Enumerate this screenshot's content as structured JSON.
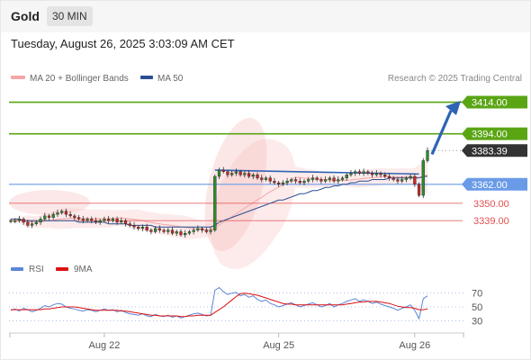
{
  "header": {
    "symbol": "Gold",
    "timeframe": "30 MIN"
  },
  "timestamp": "Tuesday, August 26, 2025 3:03:09 AM CET",
  "legend": {
    "bb_label": "MA 20 + Bollinger Bands",
    "ma50_label": "MA 50",
    "rsi_label": "RSI",
    "rsi_ma_label": "9MA",
    "copyright": "Research © 2025 Trading Central"
  },
  "colors": {
    "resistance": "#5aa514",
    "support": "#6a9be8",
    "pivot_red": "#e05050",
    "current": "#333333",
    "arrow": "#2e63b5",
    "ma50": "#2a4f90",
    "bollinger_band": "#f4a6a6",
    "rsi_line": "#5b86d6",
    "rsi_ma_line": "#dd1111"
  },
  "chart_data": {
    "type": "candlestick",
    "ylim": [
      3318,
      3424
    ],
    "x_ticks": [
      "Aug 22",
      "Aug 25",
      "Aug 26"
    ],
    "levels": [
      {
        "value": 3414.0,
        "label": "3414.00",
        "kind": "resistance"
      },
      {
        "value": 3394.0,
        "label": "3394.00",
        "kind": "resistance"
      },
      {
        "value": 3383.39,
        "label": "3383.39",
        "kind": "current"
      },
      {
        "value": 3362.0,
        "label": "3362.00",
        "kind": "support"
      },
      {
        "value": 3350.0,
        "label": "3350.00",
        "kind": "red"
      },
      {
        "value": 3339.0,
        "label": "3339.00",
        "kind": "red"
      }
    ],
    "close_series": [
      3339,
      3339,
      3340,
      3338,
      3336,
      3337,
      3338,
      3340,
      3342,
      3341,
      3343,
      3344,
      3345,
      3343,
      3342,
      3341,
      3340,
      3339,
      3340,
      3339,
      3338,
      3339,
      3340,
      3339,
      3340,
      3338,
      3339,
      3337,
      3336,
      3335,
      3334,
      3335,
      3333,
      3332,
      3334,
      3333,
      3332,
      3333,
      3331,
      3332,
      3330,
      3331,
      3332,
      3333,
      3334,
      3333,
      3332,
      3333,
      3367,
      3371,
      3370,
      3368,
      3369,
      3370,
      3368,
      3369,
      3367,
      3368,
      3366,
      3365,
      3366,
      3364,
      3363,
      3362,
      3363,
      3364,
      3365,
      3364,
      3363,
      3364,
      3365,
      3366,
      3365,
      3364,
      3365,
      3366,
      3364,
      3365,
      3366,
      3368,
      3369,
      3370,
      3369,
      3370,
      3369,
      3368,
      3369,
      3368,
      3367,
      3366,
      3365,
      3364,
      3365,
      3366,
      3367,
      3362,
      3355,
      3377,
      3383.39
    ],
    "ma50_series": [
      3340,
      3340,
      3340,
      3339,
      3339,
      3339,
      3339,
      3339,
      3339,
      3339,
      3339,
      3339,
      3339,
      3339,
      3339,
      3339,
      3338,
      3338,
      3338,
      3338,
      3338,
      3338,
      3338,
      3337,
      3337,
      3337,
      3337,
      3337,
      3336,
      3336,
      3336,
      3336,
      3336,
      3336,
      3335,
      3335,
      3335,
      3335,
      3335,
      3335,
      3335,
      3335,
      3335,
      3335,
      3335,
      3335,
      3335,
      3335,
      3336,
      3338,
      3339,
      3340,
      3341,
      3342,
      3343,
      3344,
      3345,
      3346,
      3347,
      3348,
      3349,
      3350,
      3351,
      3352,
      3352,
      3353,
      3354,
      3355,
      3356,
      3356,
      3357,
      3358,
      3358,
      3359,
      3360,
      3360,
      3361,
      3361,
      3362,
      3362,
      3363,
      3363,
      3364,
      3364,
      3364,
      3365,
      3365,
      3365,
      3365,
      3366,
      3366,
      3366,
      3366,
      3366,
      3366,
      3366,
      3366,
      3367,
      3367
    ],
    "rsi": {
      "ylim": [
        20,
        80
      ],
      "ticks": [
        70,
        50,
        30
      ],
      "values": [
        45,
        47,
        44,
        48,
        46,
        43,
        45,
        48,
        52,
        50,
        53,
        55,
        54,
        50,
        48,
        47,
        45,
        44,
        46,
        45,
        43,
        45,
        47,
        45,
        46,
        43,
        45,
        42,
        40,
        39,
        38,
        40,
        37,
        36,
        39,
        37,
        36,
        38,
        35,
        37,
        34,
        36,
        38,
        40,
        41,
        39,
        37,
        38,
        74,
        78,
        72,
        68,
        70,
        71,
        66,
        68,
        64,
        66,
        61,
        58,
        60,
        55,
        53,
        50,
        52,
        54,
        56,
        53,
        50,
        52,
        54,
        56,
        53,
        50,
        52,
        55,
        50,
        53,
        55,
        58,
        60,
        62,
        58,
        60,
        58,
        55,
        57,
        54,
        52,
        50,
        48,
        45,
        48,
        50,
        53,
        45,
        33,
        62,
        66
      ],
      "ma_values": [
        46,
        46,
        46,
        46,
        46,
        46,
        46,
        46,
        47,
        47,
        48,
        49,
        50,
        50,
        50,
        50,
        49,
        48,
        47,
        46,
        45,
        45,
        45,
        45,
        45,
        45,
        44,
        44,
        43,
        42,
        41,
        40,
        39,
        38,
        38,
        37,
        37,
        37,
        37,
        37,
        36,
        36,
        37,
        37,
        38,
        38,
        38,
        38,
        42,
        46,
        50,
        55,
        60,
        65,
        69,
        70,
        69,
        68,
        67,
        65,
        63,
        61,
        59,
        57,
        55,
        54,
        54,
        53,
        53,
        53,
        53,
        53,
        53,
        53,
        53,
        53,
        53,
        53,
        53,
        54,
        55,
        56,
        57,
        57,
        58,
        58,
        58,
        57,
        56,
        55,
        53,
        51,
        50,
        49,
        49,
        48,
        46,
        46,
        47
      ]
    }
  }
}
